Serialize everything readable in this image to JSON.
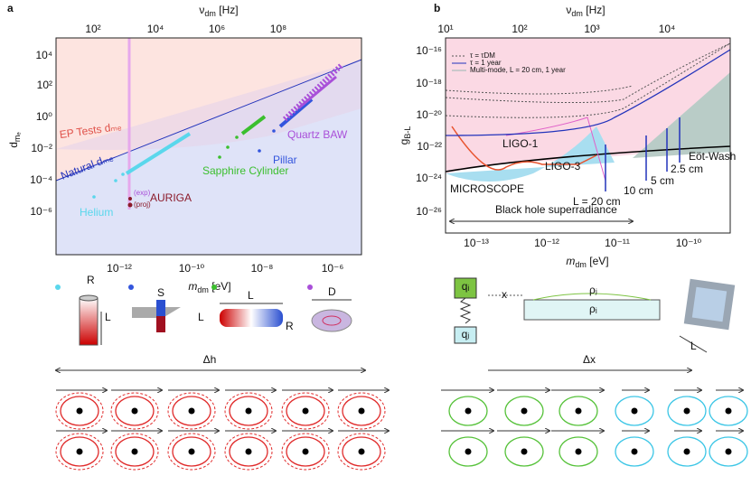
{
  "panel_a": {
    "letter": "a",
    "top_axis": {
      "symbol": "ν",
      "sub": "dm",
      "unit": " [Hz]",
      "ticks": [
        "10²",
        "10⁴",
        "10⁶",
        "10⁸"
      ]
    },
    "bottom_axis": {
      "symbol": "m",
      "sub": "dm",
      "unit": " [eV]",
      "ticks": [
        "10⁻¹²",
        "10⁻¹⁰",
        "10⁻⁸",
        "10⁻⁶"
      ]
    },
    "y_axis": {
      "symbol": "d",
      "sub": "mₑ",
      "ticks": [
        "10⁴",
        "10²",
        "10⁰",
        "10⁻²",
        "10⁻⁴",
        "10⁻⁶"
      ]
    },
    "annotations": [
      "EP Tests dₘₑ",
      "Natural dₘₑ",
      "Quartz BAW",
      "Pillar",
      "Sapphire Cylinder",
      "(exp)",
      "(proj)",
      "AURIGA",
      "Helium"
    ]
  },
  "panel_b": {
    "letter": "b",
    "top_axis": {
      "symbol": "ν",
      "sub": "dm",
      "unit": " [Hz]",
      "ticks": [
        "10¹",
        "10²",
        "10³",
        "10⁴"
      ]
    },
    "bottom_axis": {
      "symbol": "m",
      "sub": "dm",
      "unit": " [eV]",
      "ticks": [
        "10⁻¹³",
        "10⁻¹²",
        "10⁻¹¹",
        "10⁻¹⁰"
      ]
    },
    "y_axis": {
      "symbol": "g",
      "sub": "B-L",
      "ticks": [
        "10⁻¹⁶",
        "10⁻¹⁸",
        "10⁻²⁰",
        "10⁻²²",
        "10⁻²⁴",
        "10⁻²⁶"
      ]
    },
    "legend": [
      "τ = τDM",
      "τ = 1 year",
      "Multi-mode, L = 20 cm, 1 year"
    ],
    "annotations": [
      "LIGO-1",
      "LIGO-3",
      "MICROSCOPE",
      "Eöt-Wash",
      "2.5 cm",
      "5 cm",
      "10 cm",
      "L = 20 cm",
      "Black hole superradiance"
    ]
  },
  "schematic_a": {
    "labels": [
      "R",
      "L",
      "S",
      "L",
      "L",
      "R",
      "D"
    ],
    "arrow": "Δh"
  },
  "schematic_b": {
    "labels": [
      "qᵢ",
      "qⱼ",
      "x",
      "ρⱼ",
      "ρᵢ",
      "L"
    ],
    "arrow": "Δx"
  }
}
